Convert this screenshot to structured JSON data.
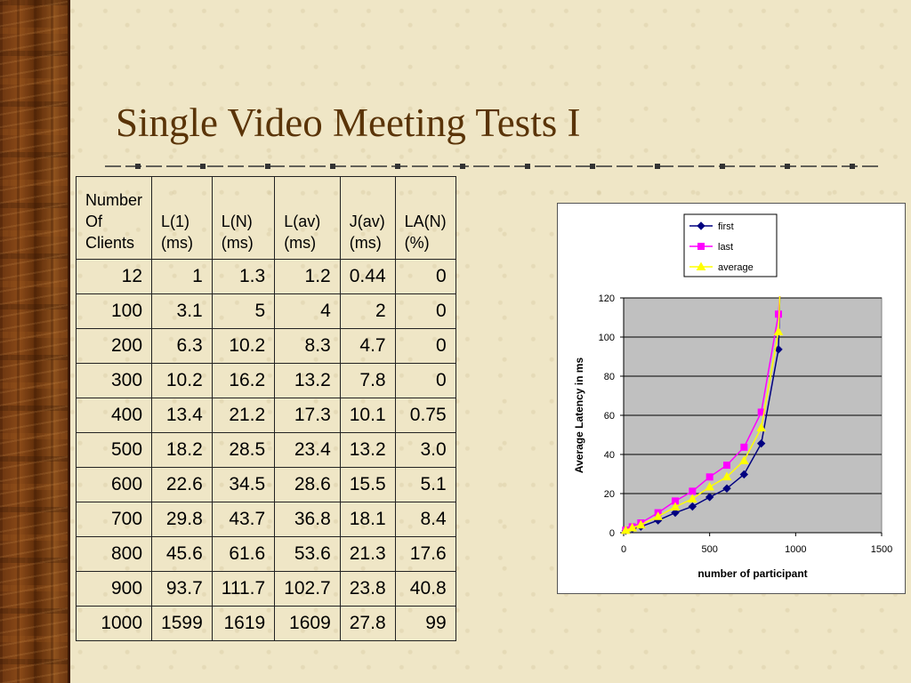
{
  "slide": {
    "title": "Single Video Meeting Tests I"
  },
  "table": {
    "headers": [
      [
        "Number",
        "Of",
        "Clients"
      ],
      [
        "L(1)",
        "(ms)"
      ],
      [
        "L(N)",
        "(ms)"
      ],
      [
        "L(av)",
        "(ms)"
      ],
      [
        "J(av)",
        "(ms)"
      ],
      [
        "LA(N)",
        "(%)"
      ]
    ],
    "rows": [
      [
        "12",
        "1",
        "1.3",
        "1.2",
        "0.44",
        "0"
      ],
      [
        "100",
        "3.1",
        "5",
        "4",
        "2",
        "0"
      ],
      [
        "200",
        "6.3",
        "10.2",
        "8.3",
        "4.7",
        "0"
      ],
      [
        "300",
        "10.2",
        "16.2",
        "13.2",
        "7.8",
        "0"
      ],
      [
        "400",
        "13.4",
        "21.2",
        "17.3",
        "10.1",
        "0.75"
      ],
      [
        "500",
        "18.2",
        "28.5",
        "23.4",
        "13.2",
        "3.0"
      ],
      [
        "600",
        "22.6",
        "34.5",
        "28.6",
        "15.5",
        "5.1"
      ],
      [
        "700",
        "29.8",
        "43.7",
        "36.8",
        "18.1",
        "8.4"
      ],
      [
        "800",
        "45.6",
        "61.6",
        "53.6",
        "21.3",
        "17.6"
      ],
      [
        "900",
        "93.7",
        "111.7",
        "102.7",
        "23.8",
        "40.8"
      ],
      [
        "1000",
        "1599",
        "1619",
        "1609",
        "27.8",
        "99"
      ]
    ]
  },
  "chart_data": {
    "type": "line",
    "title": "",
    "xlabel": "number of participant",
    "ylabel": "Average Latency in ms",
    "xlim": [
      0,
      1500
    ],
    "ylim": [
      0,
      120
    ],
    "xticks": [
      0,
      500,
      1000,
      1500
    ],
    "yticks": [
      0,
      20,
      40,
      60,
      80,
      100,
      120
    ],
    "grid": "horizontal",
    "plot_background": "#c0c0c0",
    "legend": "top",
    "x": [
      12,
      50,
      100,
      200,
      300,
      400,
      500,
      600,
      700,
      800,
      900
    ],
    "series": [
      {
        "name": "first",
        "color": "#000080",
        "marker": "diamond",
        "values": [
          1,
          2,
          3.1,
          6.3,
          10.2,
          13.4,
          18.2,
          22.6,
          29.8,
          45.6,
          93.7
        ]
      },
      {
        "name": "last",
        "color": "#ff00ff",
        "marker": "square",
        "values": [
          1.3,
          3,
          5,
          10.2,
          16.2,
          21.2,
          28.5,
          34.5,
          43.7,
          61.6,
          111.7
        ]
      },
      {
        "name": "average",
        "color": "#ffff00",
        "marker": "triangle",
        "values": [
          1.2,
          2.5,
          4,
          8.3,
          13.2,
          17.3,
          23.4,
          28.6,
          36.8,
          53.6,
          102.7
        ]
      }
    ]
  }
}
